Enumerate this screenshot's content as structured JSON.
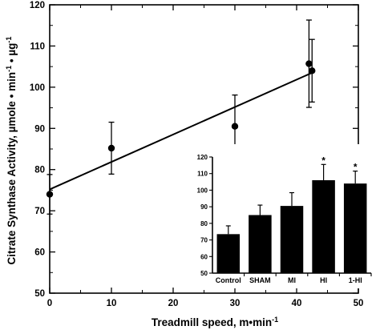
{
  "chart_data": [
    {
      "type": "scatter",
      "xlabel": "Treadmill speed, m•min",
      "xlabel_sup": "-1",
      "ylabel": "Citrate Synthase Activity, µmole • min",
      "ylabel_sup1": "-1",
      "ylabel_mid": " • µg",
      "ylabel_sup2": "-1",
      "xlim": [
        0,
        50
      ],
      "ylim": [
        50,
        120
      ],
      "xticks": [
        "0",
        "10",
        "20",
        "30",
        "40",
        "50"
      ],
      "yticks": [
        "50",
        "60",
        "70",
        "80",
        "90",
        "100",
        "110",
        "120"
      ],
      "points": [
        {
          "x": 0,
          "y": 74,
          "err": 4.8
        },
        {
          "x": 10,
          "y": 85.2,
          "err": 6.3
        },
        {
          "x": 30,
          "y": 90.5,
          "err": 7.6
        },
        {
          "x": 42,
          "y": 105.7,
          "err": 10.6
        },
        {
          "x": 42.5,
          "y": 104.0,
          "err": 7.6
        }
      ],
      "regression_line": {
        "x": [
          0,
          42.5
        ],
        "y": [
          75.2,
          103.5
        ]
      }
    },
    {
      "type": "bar",
      "categories": [
        "Control",
        "SHAM",
        "MI",
        "HI",
        "1-HI"
      ],
      "values": [
        73.5,
        85,
        90.5,
        106,
        104
      ],
      "errors": [
        5,
        6,
        8,
        9.5,
        7.5
      ],
      "significance": [
        "",
        "",
        "",
        "*",
        "*"
      ],
      "ylim": [
        50,
        120
      ],
      "yticks": [
        "50",
        "60",
        "70",
        "80",
        "90",
        "100",
        "110",
        "120"
      ]
    }
  ]
}
